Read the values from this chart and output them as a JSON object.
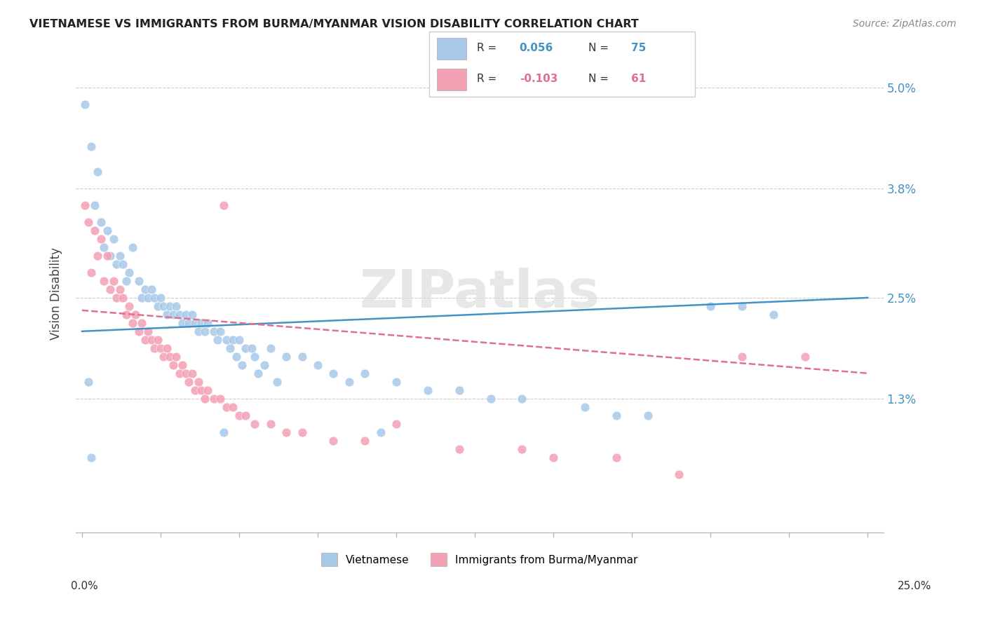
{
  "title": "VIETNAMESE VS IMMIGRANTS FROM BURMA/MYANMAR VISION DISABILITY CORRELATION CHART",
  "source": "Source: ZipAtlas.com",
  "ylabel": "Vision Disability",
  "legend_cat1": "Vietnamese",
  "legend_cat2": "Immigrants from Burma/Myanmar",
  "watermark": "ZIPatlas",
  "blue_color": "#a8c8e8",
  "pink_color": "#f4a0b5",
  "blue_line_color": "#4292c6",
  "pink_line_color": "#e07090",
  "ytick_values": [
    0.013,
    0.025,
    0.038,
    0.05
  ],
  "ytick_labels": [
    "1.3%",
    "2.5%",
    "3.8%",
    "5.0%"
  ],
  "xlim": [
    -0.002,
    0.255
  ],
  "ylim": [
    -0.003,
    0.054
  ],
  "blue_line_x": [
    0.0,
    0.25
  ],
  "blue_line_y": [
    0.021,
    0.025
  ],
  "pink_line_x": [
    0.0,
    0.25
  ],
  "pink_line_y": [
    0.0235,
    0.016
  ],
  "blue_R": "0.056",
  "blue_N": "75",
  "pink_R": "-0.103",
  "pink_N": "61",
  "blue_points": [
    [
      0.001,
      0.048
    ],
    [
      0.003,
      0.043
    ],
    [
      0.005,
      0.04
    ],
    [
      0.004,
      0.036
    ],
    [
      0.006,
      0.034
    ],
    [
      0.008,
      0.033
    ],
    [
      0.007,
      0.031
    ],
    [
      0.01,
      0.032
    ],
    [
      0.009,
      0.03
    ],
    [
      0.012,
      0.03
    ],
    [
      0.011,
      0.029
    ],
    [
      0.013,
      0.029
    ],
    [
      0.015,
      0.028
    ],
    [
      0.014,
      0.027
    ],
    [
      0.018,
      0.027
    ],
    [
      0.016,
      0.031
    ],
    [
      0.02,
      0.026
    ],
    [
      0.022,
      0.026
    ],
    [
      0.019,
      0.025
    ],
    [
      0.021,
      0.025
    ],
    [
      0.023,
      0.025
    ],
    [
      0.025,
      0.025
    ],
    [
      0.024,
      0.024
    ],
    [
      0.026,
      0.024
    ],
    [
      0.028,
      0.024
    ],
    [
      0.03,
      0.024
    ],
    [
      0.027,
      0.023
    ],
    [
      0.029,
      0.023
    ],
    [
      0.031,
      0.023
    ],
    [
      0.033,
      0.023
    ],
    [
      0.035,
      0.023
    ],
    [
      0.032,
      0.022
    ],
    [
      0.034,
      0.022
    ],
    [
      0.036,
      0.022
    ],
    [
      0.038,
      0.022
    ],
    [
      0.04,
      0.022
    ],
    [
      0.037,
      0.021
    ],
    [
      0.039,
      0.021
    ],
    [
      0.042,
      0.021
    ],
    [
      0.044,
      0.021
    ],
    [
      0.043,
      0.02
    ],
    [
      0.046,
      0.02
    ],
    [
      0.048,
      0.02
    ],
    [
      0.05,
      0.02
    ],
    [
      0.047,
      0.019
    ],
    [
      0.052,
      0.019
    ],
    [
      0.054,
      0.019
    ],
    [
      0.06,
      0.019
    ],
    [
      0.049,
      0.018
    ],
    [
      0.055,
      0.018
    ],
    [
      0.065,
      0.018
    ],
    [
      0.07,
      0.018
    ],
    [
      0.051,
      0.017
    ],
    [
      0.058,
      0.017
    ],
    [
      0.075,
      0.017
    ],
    [
      0.08,
      0.016
    ],
    [
      0.056,
      0.016
    ],
    [
      0.09,
      0.016
    ],
    [
      0.062,
      0.015
    ],
    [
      0.085,
      0.015
    ],
    [
      0.1,
      0.015
    ],
    [
      0.11,
      0.014
    ],
    [
      0.12,
      0.014
    ],
    [
      0.13,
      0.013
    ],
    [
      0.14,
      0.013
    ],
    [
      0.16,
      0.012
    ],
    [
      0.17,
      0.011
    ],
    [
      0.18,
      0.011
    ],
    [
      0.045,
      0.009
    ],
    [
      0.095,
      0.009
    ],
    [
      0.2,
      0.024
    ],
    [
      0.21,
      0.024
    ],
    [
      0.22,
      0.023
    ],
    [
      0.003,
      0.006
    ],
    [
      0.002,
      0.015
    ]
  ],
  "pink_points": [
    [
      0.001,
      0.036
    ],
    [
      0.002,
      0.034
    ],
    [
      0.004,
      0.033
    ],
    [
      0.006,
      0.032
    ],
    [
      0.003,
      0.028
    ],
    [
      0.005,
      0.03
    ],
    [
      0.008,
      0.03
    ],
    [
      0.007,
      0.027
    ],
    [
      0.01,
      0.027
    ],
    [
      0.009,
      0.026
    ],
    [
      0.012,
      0.026
    ],
    [
      0.011,
      0.025
    ],
    [
      0.013,
      0.025
    ],
    [
      0.015,
      0.024
    ],
    [
      0.014,
      0.023
    ],
    [
      0.017,
      0.023
    ],
    [
      0.016,
      0.022
    ],
    [
      0.019,
      0.022
    ],
    [
      0.018,
      0.021
    ],
    [
      0.021,
      0.021
    ],
    [
      0.02,
      0.02
    ],
    [
      0.022,
      0.02
    ],
    [
      0.024,
      0.02
    ],
    [
      0.023,
      0.019
    ],
    [
      0.025,
      0.019
    ],
    [
      0.027,
      0.019
    ],
    [
      0.026,
      0.018
    ],
    [
      0.028,
      0.018
    ],
    [
      0.03,
      0.018
    ],
    [
      0.029,
      0.017
    ],
    [
      0.032,
      0.017
    ],
    [
      0.031,
      0.016
    ],
    [
      0.033,
      0.016
    ],
    [
      0.035,
      0.016
    ],
    [
      0.034,
      0.015
    ],
    [
      0.037,
      0.015
    ],
    [
      0.036,
      0.014
    ],
    [
      0.038,
      0.014
    ],
    [
      0.04,
      0.014
    ],
    [
      0.039,
      0.013
    ],
    [
      0.042,
      0.013
    ],
    [
      0.044,
      0.013
    ],
    [
      0.046,
      0.012
    ],
    [
      0.048,
      0.012
    ],
    [
      0.05,
      0.011
    ],
    [
      0.052,
      0.011
    ],
    [
      0.055,
      0.01
    ],
    [
      0.06,
      0.01
    ],
    [
      0.065,
      0.009
    ],
    [
      0.07,
      0.009
    ],
    [
      0.08,
      0.008
    ],
    [
      0.09,
      0.008
    ],
    [
      0.1,
      0.01
    ],
    [
      0.12,
      0.007
    ],
    [
      0.14,
      0.007
    ],
    [
      0.15,
      0.006
    ],
    [
      0.17,
      0.006
    ],
    [
      0.19,
      0.004
    ],
    [
      0.21,
      0.018
    ],
    [
      0.23,
      0.018
    ],
    [
      0.045,
      0.036
    ]
  ]
}
